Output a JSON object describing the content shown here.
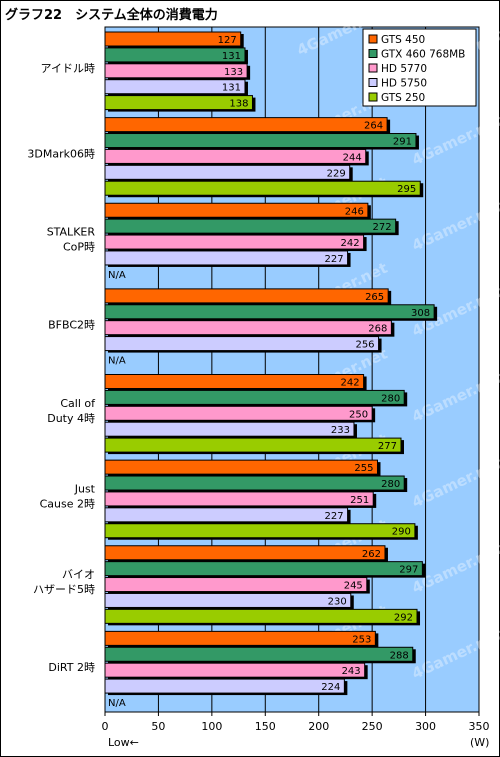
{
  "chart_data": {
    "type": "bar",
    "orientation": "horizontal",
    "title": "グラフ22　システム全体の消費電力",
    "unit_label": "(W)",
    "direction_note": "Low←",
    "xlim": [
      0,
      350
    ],
    "xticks": [
      0,
      50,
      100,
      150,
      200,
      250,
      300,
      350
    ],
    "grid": "vertical",
    "legend_position": "top-right",
    "categories": [
      [
        "アイドル時"
      ],
      [
        "3DMark06時"
      ],
      [
        "STALKER",
        "CoP時"
      ],
      [
        "BFBC2時"
      ],
      [
        "Call of",
        "Duty 4時"
      ],
      [
        "Just",
        "Cause 2時"
      ],
      [
        "バイオ",
        "ハザード5時"
      ],
      [
        "DiRT 2時"
      ]
    ],
    "missing_label": "N/A",
    "series": [
      {
        "name": "GTS 450",
        "color": "#ff6600",
        "values": [
          127,
          264,
          246,
          265,
          242,
          255,
          262,
          253
        ]
      },
      {
        "name": "GTX 460 768MB",
        "color": "#339966",
        "values": [
          131,
          291,
          272,
          308,
          280,
          280,
          297,
          288
        ]
      },
      {
        "name": "HD 5770",
        "color": "#ff99cc",
        "values": [
          133,
          244,
          242,
          268,
          250,
          251,
          245,
          243
        ]
      },
      {
        "name": "HD 5750",
        "color": "#ccccff",
        "values": [
          131,
          229,
          227,
          256,
          233,
          227,
          230,
          224
        ]
      },
      {
        "name": "GTS 250",
        "color": "#99cc00",
        "values": [
          138,
          295,
          null,
          null,
          277,
          290,
          292,
          null
        ]
      }
    ]
  },
  "colors": {
    "plot_background": "#99ccff",
    "watermark": "4Gamer.net"
  }
}
